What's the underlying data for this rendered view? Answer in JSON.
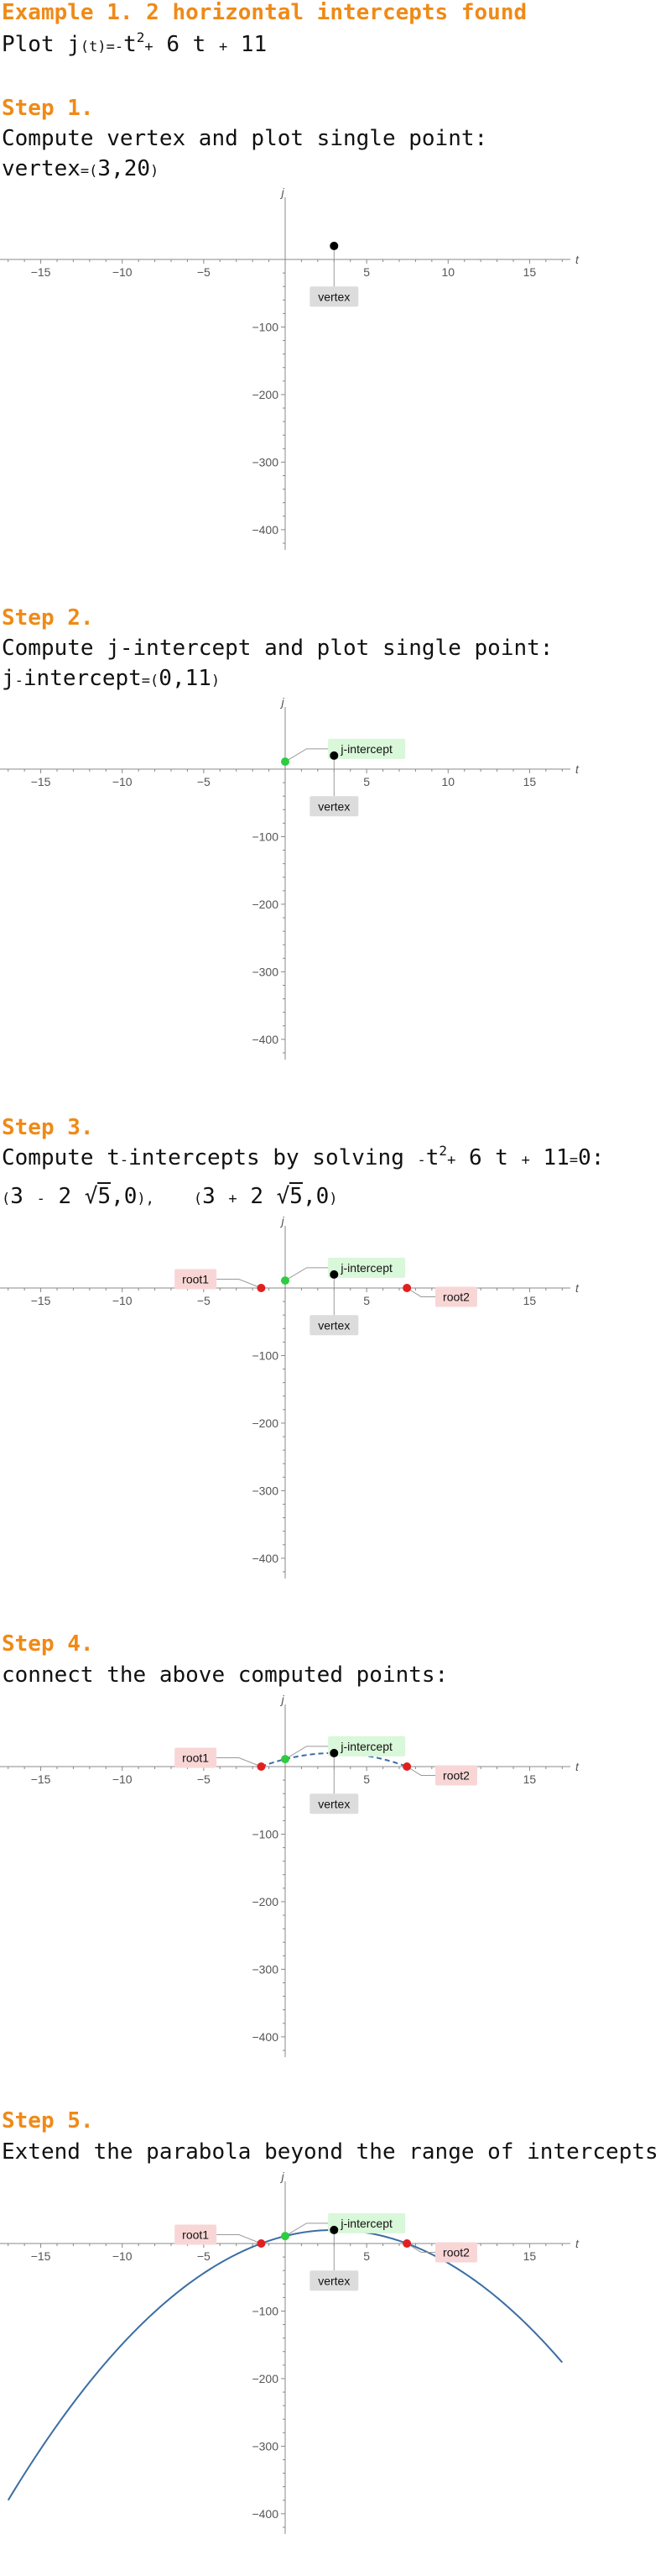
{
  "header": {
    "title": "Example 1. 2 horizontal intercepts found",
    "plot_prefix": "Plot j",
    "plot_func_t": "(t)",
    "plot_eq_minus": "=-",
    "plot_t": "t",
    "plot_exp": "2",
    "plot_rest_a": "+",
    "plot_rest_b": "6 t",
    "plot_rest_c": "+",
    "plot_rest_d": "11"
  },
  "steps": [
    {
      "title": "Step 1.",
      "line1": "Compute vertex and plot single point:",
      "line2_a": "vertex",
      "line2_b": "=",
      "line2_c": "(",
      "line2_d": "3,20",
      "line2_e": ")"
    },
    {
      "title": "Step 2.",
      "line1": "Compute j-intercept and plot single point:",
      "line2_a": "j",
      "line2_b": "-",
      "line2_c": "intercept",
      "line2_d": "=",
      "line2_e": "(",
      "line2_f": "0,11",
      "line2_g": ")"
    },
    {
      "title": "Step 3.",
      "line1_a": "Compute t",
      "line1_b": "-",
      "line1_c": "intercepts by solving ",
      "line1_d": "-",
      "line1_e": "t",
      "line1_f": "2",
      "line1_g": "+",
      "line1_h": "6 t",
      "line1_i": "+",
      "line1_j": "11",
      "line1_k": "=",
      "line1_l": "0:",
      "line2_a": "(",
      "line2_b": "3",
      "line2_c": "-",
      "line2_d": "2",
      "line2_e": "√",
      "line2_f": "5",
      "line2_g": ",0",
      "line2_h": "),",
      "line2_i": "(",
      "line2_j": "3",
      "line2_k": "+",
      "line2_l": "2",
      "line2_m": "√",
      "line2_n": "5",
      "line2_o": ",0",
      "line2_p": ")"
    },
    {
      "title": "Step 4.",
      "line1": "connect the above computed points:"
    },
    {
      "title": "Step 5.",
      "line1": "Extend the parabola beyond the range of intercepts"
    }
  ],
  "chart_data": [
    {
      "type": "scatter",
      "xlabel": "t",
      "ylabel": "j",
      "xlim": [
        -17.5,
        17.5
      ],
      "ylim": [
        -430,
        35
      ],
      "xticks": [
        -15,
        -10,
        -5,
        5,
        10,
        15
      ],
      "yticks": [
        -100,
        -200,
        -300,
        -400
      ],
      "points": [
        {
          "name": "vertex",
          "x": 3,
          "y": 20,
          "color": "#000000"
        }
      ],
      "labels": [
        "vertex"
      ]
    },
    {
      "type": "scatter",
      "xlabel": "t",
      "ylabel": "j",
      "xlim": [
        -17.5,
        17.5
      ],
      "ylim": [
        -430,
        35
      ],
      "xticks": [
        -15,
        -10,
        -5,
        5,
        10,
        15
      ],
      "yticks": [
        -100,
        -200,
        -300,
        -400
      ],
      "points": [
        {
          "name": "vertex",
          "x": 3,
          "y": 20,
          "color": "#000000"
        },
        {
          "name": "j-intercept",
          "x": 0,
          "y": 11,
          "color": "#2ecc40"
        }
      ],
      "labels": [
        "vertex",
        "j-intercept"
      ]
    },
    {
      "type": "scatter",
      "xlabel": "t",
      "ylabel": "j",
      "xlim": [
        -17.5,
        17.5
      ],
      "ylim": [
        -430,
        35
      ],
      "xticks": [
        -15,
        -10,
        -5,
        5,
        10,
        15
      ],
      "yticks": [
        -100,
        -200,
        -300,
        -400
      ],
      "points": [
        {
          "name": "vertex",
          "x": 3,
          "y": 20,
          "color": "#000000"
        },
        {
          "name": "j-intercept",
          "x": 0,
          "y": 11,
          "color": "#2ecc40"
        },
        {
          "name": "root1",
          "x": -1.472,
          "y": 0,
          "color": "#e02020"
        },
        {
          "name": "root2",
          "x": 7.472,
          "y": 0,
          "color": "#e02020"
        }
      ],
      "labels": [
        "vertex",
        "j-intercept",
        "root1",
        "root2"
      ]
    },
    {
      "type": "line",
      "xlabel": "t",
      "ylabel": "j",
      "xlim": [
        -17.5,
        17.5
      ],
      "ylim": [
        -430,
        35
      ],
      "xticks": [
        -15,
        -10,
        -5,
        5,
        10,
        15
      ],
      "yticks": [
        -100,
        -200,
        -300,
        -400
      ],
      "curve": {
        "a": -1,
        "b": 6,
        "c": 11,
        "t_from": -1.472,
        "t_to": 7.472,
        "style": "dashed",
        "color": "#3a6ea5"
      },
      "points": [
        {
          "name": "vertex",
          "x": 3,
          "y": 20,
          "color": "#000000"
        },
        {
          "name": "j-intercept",
          "x": 0,
          "y": 11,
          "color": "#2ecc40"
        },
        {
          "name": "root1",
          "x": -1.472,
          "y": 0,
          "color": "#e02020"
        },
        {
          "name": "root2",
          "x": 7.472,
          "y": 0,
          "color": "#e02020"
        }
      ],
      "labels": [
        "vertex",
        "j-intercept",
        "root1",
        "root2"
      ]
    },
    {
      "type": "line",
      "xlabel": "t",
      "ylabel": "j",
      "xlim": [
        -17.5,
        17.5
      ],
      "ylim": [
        -430,
        35
      ],
      "xticks": [
        -15,
        -10,
        -5,
        5,
        10,
        15
      ],
      "yticks": [
        -100,
        -200,
        -300,
        -400
      ],
      "curve": {
        "a": -1,
        "b": 6,
        "c": 11,
        "t_from": -17,
        "t_to": 17,
        "style": "solid",
        "color": "#3a6ea5"
      },
      "points": [
        {
          "name": "vertex",
          "x": 3,
          "y": 20,
          "color": "#000000"
        },
        {
          "name": "j-intercept",
          "x": 0,
          "y": 11,
          "color": "#2ecc40"
        },
        {
          "name": "root1",
          "x": -1.472,
          "y": 0,
          "color": "#e02020"
        },
        {
          "name": "root2",
          "x": 7.472,
          "y": 0,
          "color": "#e02020"
        }
      ],
      "labels": [
        "vertex",
        "j-intercept",
        "root1",
        "root2"
      ]
    }
  ]
}
